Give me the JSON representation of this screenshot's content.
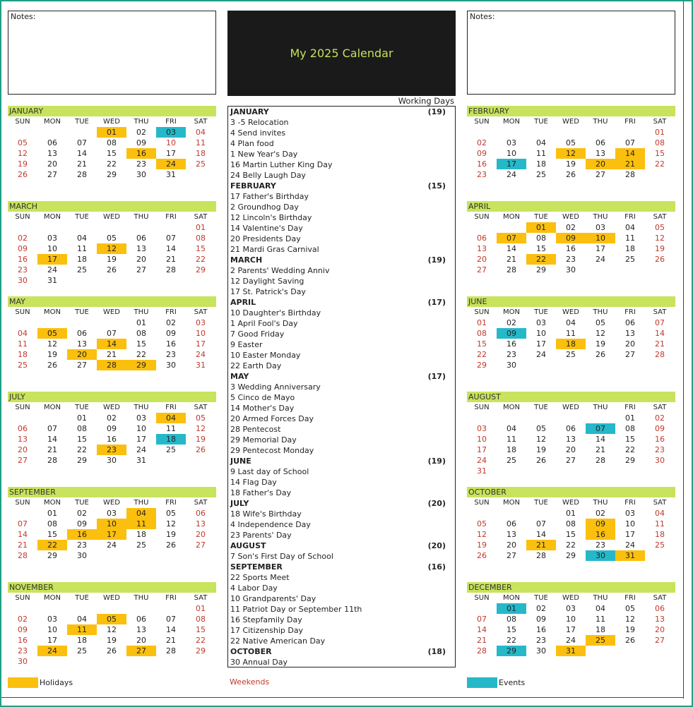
{
  "title": "My 2025 Calendar",
  "notes_label": "Notes:",
  "working_days_label": "Working Days",
  "day_names": [
    "SUN",
    "MON",
    "TUE",
    "WED",
    "THU",
    "FRI",
    "SAT"
  ],
  "legend": {
    "holidays": "Holidays",
    "weekends": "Weekends",
    "events": "Events"
  },
  "colors": {
    "holiday": "#fbbf0d",
    "event": "#25b8c9",
    "weekend_text": "#c0392b",
    "month_header": "#c8e35c",
    "title_text": "#c4e05a"
  },
  "months": [
    {
      "name": "JANUARY",
      "start": 3,
      "days": 31,
      "wk": [
        4,
        5,
        10,
        11,
        12,
        18,
        19,
        25,
        26
      ],
      "hol": [
        1,
        16,
        24
      ],
      "evt": [
        3
      ]
    },
    {
      "name": "FEBRUARY",
      "start": 6,
      "days": 28,
      "wk": [
        1,
        2,
        8,
        9,
        15,
        16,
        22,
        23
      ],
      "hol": [
        12,
        14,
        20,
        21
      ],
      "evt": [
        17
      ]
    },
    {
      "name": "MARCH",
      "start": 6,
      "days": 31,
      "wk": [
        1,
        2,
        8,
        9,
        15,
        16,
        22,
        23,
        29,
        30
      ],
      "hol": [
        12,
        17
      ],
      "evt": []
    },
    {
      "name": "APRIL",
      "start": 2,
      "days": 30,
      "wk": [
        5,
        6,
        12,
        13,
        19,
        20,
        26,
        27
      ],
      "hol": [
        1,
        7,
        9,
        10,
        22
      ],
      "evt": []
    },
    {
      "name": "MAY",
      "start": 4,
      "days": 31,
      "wk": [
        3,
        4,
        10,
        11,
        17,
        18,
        24,
        25,
        31
      ],
      "hol": [
        5,
        14,
        20,
        28,
        29
      ],
      "evt": []
    },
    {
      "name": "JUNE",
      "start": 0,
      "days": 30,
      "wk": [
        1,
        7,
        8,
        14,
        15,
        21,
        22,
        28,
        29
      ],
      "hol": [
        18
      ],
      "evt": [
        9
      ]
    },
    {
      "name": "JULY",
      "start": 2,
      "days": 31,
      "wk": [
        5,
        6,
        12,
        13,
        19,
        20,
        26,
        27
      ],
      "hol": [
        4,
        23
      ],
      "evt": [
        18
      ]
    },
    {
      "name": "AUGUST",
      "start": 5,
      "days": 31,
      "wk": [
        2,
        3,
        9,
        10,
        16,
        17,
        23,
        24,
        30,
        31
      ],
      "hol": [],
      "evt": [
        7
      ]
    },
    {
      "name": "SEPTEMBER",
      "start": 1,
      "days": 30,
      "wk": [
        6,
        7,
        13,
        14,
        20,
        21,
        27,
        28
      ],
      "hol": [
        4,
        10,
        11,
        16,
        17,
        22
      ],
      "evt": []
    },
    {
      "name": "OCTOBER",
      "start": 3,
      "days": 31,
      "wk": [
        4,
        5,
        11,
        12,
        18,
        19,
        25,
        26
      ],
      "hol": [
        9,
        16,
        21,
        31
      ],
      "evt": [
        30
      ]
    },
    {
      "name": "NOVEMBER",
      "start": 6,
      "days": 30,
      "wk": [
        1,
        2,
        8,
        9,
        15,
        16,
        22,
        23,
        29,
        30
      ],
      "hol": [
        5,
        11,
        24,
        27
      ],
      "evt": []
    },
    {
      "name": "DECEMBER",
      "start": 1,
      "days": 31,
      "wk": [
        6,
        7,
        13,
        14,
        20,
        21,
        27,
        28
      ],
      "hol": [
        25,
        31
      ],
      "evt": [
        1,
        29
      ]
    }
  ],
  "events_list": [
    {
      "text": "JANUARY",
      "count": "(19)",
      "month": true
    },
    {
      "text": "3 -5 Relocation"
    },
    {
      "text": "4 Send invites"
    },
    {
      "text": "4 Plan food"
    },
    {
      "text": "1 New Year's Day"
    },
    {
      "text": "16 Martin Luther King Day"
    },
    {
      "text": "24 Belly Laugh Day"
    },
    {
      "text": "FEBRUARY",
      "count": "(15)",
      "month": true
    },
    {
      "text": "17 Father's Birthday"
    },
    {
      "text": "2 Groundhog Day"
    },
    {
      "text": "12 Lincoln's Birthday"
    },
    {
      "text": "14 Valentine's Day"
    },
    {
      "text": "20 Presidents Day"
    },
    {
      "text": "21 Mardi Gras Carnival"
    },
    {
      "text": "MARCH",
      "count": "(19)",
      "month": true
    },
    {
      "text": "2 Parents' Wedding Anniv"
    },
    {
      "text": "12 Daylight Saving"
    },
    {
      "text": "17 St. Patrick's Day"
    },
    {
      "text": "APRIL",
      "count": "(17)",
      "month": true
    },
    {
      "text": "10 Daughter's Birthday"
    },
    {
      "text": "1 April Fool's Day"
    },
    {
      "text": "7 Good Friday"
    },
    {
      "text": "9 Easter"
    },
    {
      "text": "10 Easter Monday"
    },
    {
      "text": "22 Earth Day"
    },
    {
      "text": "MAY",
      "count": "(17)",
      "month": true
    },
    {
      "text": "3 Wedding Anniversary"
    },
    {
      "text": "5 Cinco de Mayo"
    },
    {
      "text": "14 Mother's Day"
    },
    {
      "text": "20 Armed Forces Day"
    },
    {
      "text": "28 Pentecost"
    },
    {
      "text": "29 Memorial Day"
    },
    {
      "text": "29 Pentecost Monday"
    },
    {
      "text": "JUNE",
      "count": "(19)",
      "month": true
    },
    {
      "text": "9 Last day of School"
    },
    {
      "text": "14 Flag Day"
    },
    {
      "text": "18 Father's Day"
    },
    {
      "text": "JULY",
      "count": "(20)",
      "month": true
    },
    {
      "text": "18 Wife's Birthday"
    },
    {
      "text": "4 Independence Day"
    },
    {
      "text": "23 Parents' Day"
    },
    {
      "text": "AUGUST",
      "count": "(20)",
      "month": true
    },
    {
      "text": "7 Son's First Day of School"
    },
    {
      "text": "SEPTEMBER",
      "count": "(16)",
      "month": true
    },
    {
      "text": "22 Sports Meet"
    },
    {
      "text": "4 Labor Day"
    },
    {
      "text": "10 Grandparents' Day"
    },
    {
      "text": "11 Patriot Day or September 11th"
    },
    {
      "text": "16 Stepfamily Day"
    },
    {
      "text": "17 Citizenship Day"
    },
    {
      "text": "22 Native American Day"
    },
    {
      "text": "OCTOBER",
      "count": "(18)",
      "month": true
    },
    {
      "text": "30 Annual Day"
    }
  ]
}
